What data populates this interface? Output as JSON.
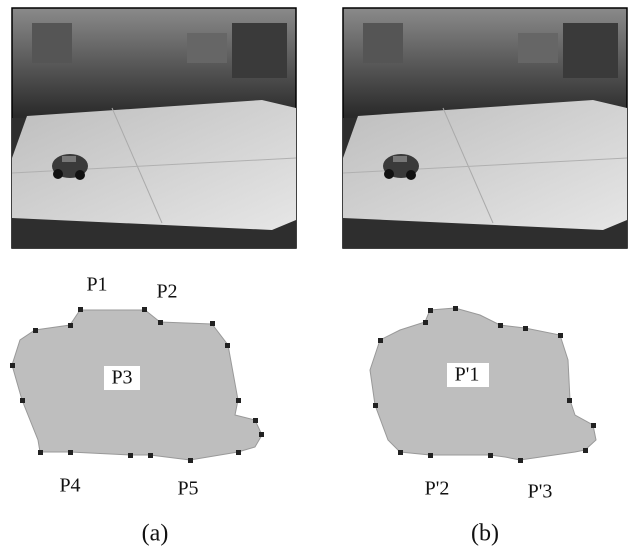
{
  "panels": [
    {
      "caption": "(a)",
      "point_labels": [
        "P1",
        "P2",
        "P3",
        "P4",
        "P5"
      ]
    },
    {
      "caption": "(b)",
      "point_labels": [
        "P'1",
        "P'2",
        "P'3"
      ]
    }
  ]
}
